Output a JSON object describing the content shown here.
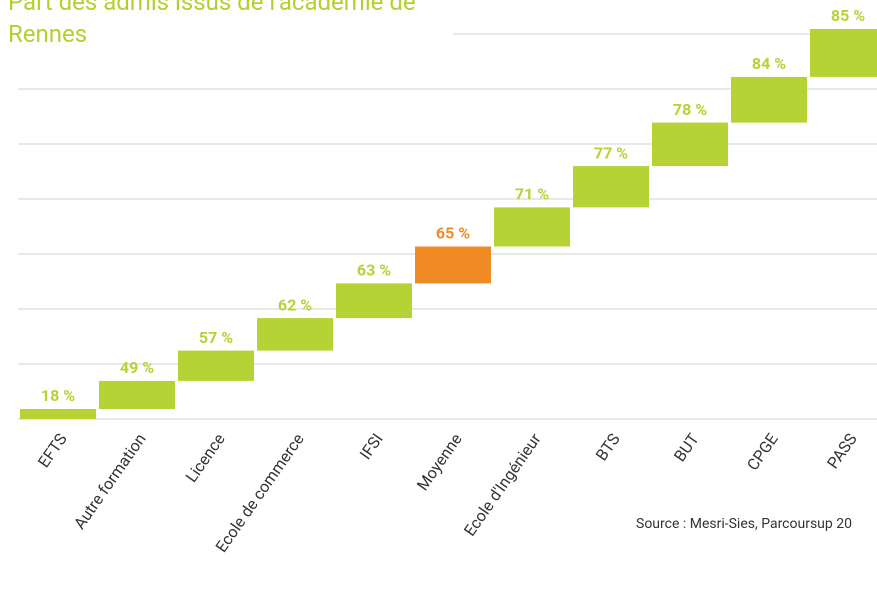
{
  "chart_data": {
    "type": "step",
    "title": "Part des admis issus de l'académie de Rennes",
    "categories": [
      "EFTS",
      "Autre formation",
      "Licence",
      "Ecole de commerce",
      "IFSI",
      "Moyenne",
      "Ecole d'Ingénieur",
      "BTS",
      "BUT",
      "CPGE",
      "PASS"
    ],
    "values": [
      18,
      49,
      57,
      62,
      63,
      65,
      71,
      77,
      78,
      84,
      85
    ],
    "value_labels": [
      "18 %",
      "49 %",
      "57 %",
      "62 %",
      "63 %",
      "65 %",
      "71 %",
      "77 %",
      "78 %",
      "84 %",
      "85 %"
    ],
    "colors": [
      "#b5d334",
      "#b5d334",
      "#b5d334",
      "#b5d334",
      "#b5d334",
      "#f08a24",
      "#b5d334",
      "#b5d334",
      "#b5d334",
      "#b5d334",
      "#b5d334"
    ],
    "source": "Source : Mesri-Sies, Parcoursup 20"
  }
}
